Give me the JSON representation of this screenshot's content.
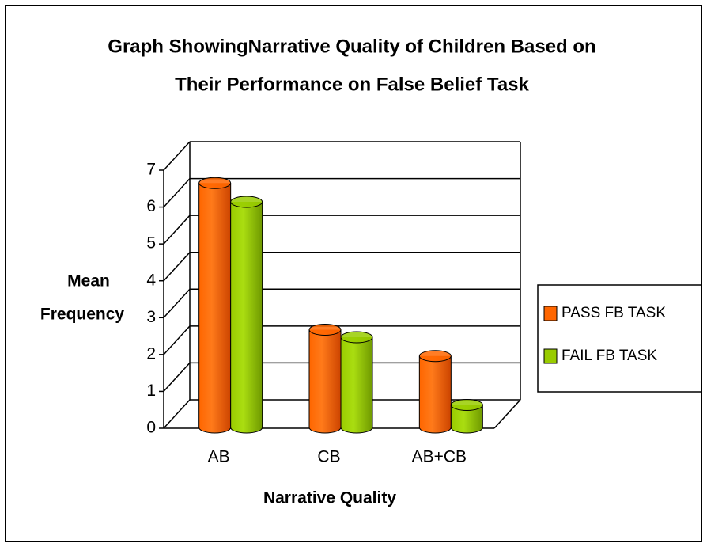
{
  "chart_data": {
    "type": "bar3d",
    "title": [
      "Graph ShowingNarrative Quality of Children Based on",
      "Their Performance on False Belief Task"
    ],
    "y_label": [
      "Mean",
      "Frequency"
    ],
    "x_label": "Narrative Quality",
    "categories": [
      "AB",
      "CB",
      "AB+CB"
    ],
    "series": [
      {
        "name": "PASS FB TASK",
        "color": "#ff6600",
        "values": [
          6.5,
          2.6,
          1.9
        ]
      },
      {
        "name": "FAIL FB TASK",
        "color": "#99cc00",
        "values": [
          6.0,
          2.4,
          0.6
        ]
      }
    ],
    "ylim": [
      0,
      7
    ],
    "yticks": [
      0,
      1,
      2,
      3,
      4,
      5,
      6,
      7
    ],
    "grid": true,
    "legend": "right"
  }
}
